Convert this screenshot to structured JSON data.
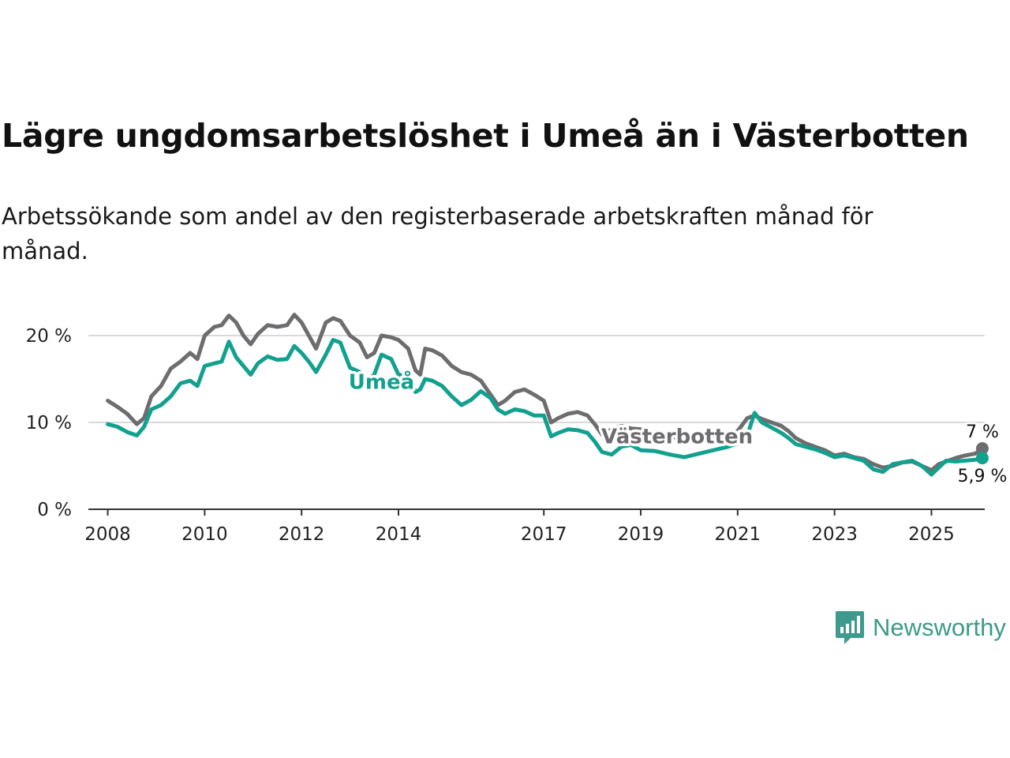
{
  "chart_data": {
    "type": "line",
    "title": "Lägre ungdomsarbetslöshet i Umeå än i Västerbotten",
    "subtitle": "Arbetssökande som andel av den registerbaserade arbetskraften månad för månad.",
    "xlabel": "",
    "ylabel": "",
    "ylim": [
      0,
      23
    ],
    "xlim": [
      2007.6,
      2026.1
    ],
    "y_ticks": [
      0,
      10,
      20
    ],
    "y_tick_labels": [
      "0 %",
      "10 %",
      "20 %"
    ],
    "x_ticks": [
      2008,
      2010,
      2012,
      2014,
      2017,
      2019,
      2021,
      2023,
      2025
    ],
    "x_tick_labels": [
      "2008",
      "2010",
      "2012",
      "2014",
      "2017",
      "2019",
      "2021",
      "2023",
      "2025"
    ],
    "grid": true,
    "series": [
      {
        "name": "Västerbotten",
        "color": "#6d6d70",
        "end_label": "7 %",
        "points": [
          [
            2008.0,
            12.5
          ],
          [
            2008.2,
            11.8
          ],
          [
            2008.4,
            11.0
          ],
          [
            2008.6,
            9.8
          ],
          [
            2008.75,
            10.5
          ],
          [
            2008.9,
            13.0
          ],
          [
            2009.1,
            14.2
          ],
          [
            2009.3,
            16.2
          ],
          [
            2009.5,
            17.0
          ],
          [
            2009.7,
            18.0
          ],
          [
            2009.85,
            17.3
          ],
          [
            2010.0,
            20.0
          ],
          [
            2010.2,
            21.0
          ],
          [
            2010.35,
            21.2
          ],
          [
            2010.5,
            22.3
          ],
          [
            2010.65,
            21.5
          ],
          [
            2010.8,
            20.0
          ],
          [
            2010.95,
            19.0
          ],
          [
            2011.1,
            20.2
          ],
          [
            2011.3,
            21.2
          ],
          [
            2011.5,
            21.0
          ],
          [
            2011.7,
            21.2
          ],
          [
            2011.85,
            22.4
          ],
          [
            2012.0,
            21.5
          ],
          [
            2012.15,
            20.0
          ],
          [
            2012.3,
            18.5
          ],
          [
            2012.5,
            21.5
          ],
          [
            2012.65,
            22.0
          ],
          [
            2012.8,
            21.7
          ],
          [
            2013.0,
            20.0
          ],
          [
            2013.2,
            19.2
          ],
          [
            2013.35,
            17.5
          ],
          [
            2013.5,
            18.0
          ],
          [
            2013.65,
            20.0
          ],
          [
            2013.85,
            19.8
          ],
          [
            2014.0,
            19.5
          ],
          [
            2014.2,
            18.5
          ],
          [
            2014.35,
            16.0
          ],
          [
            2014.45,
            15.5
          ],
          [
            2014.55,
            18.5
          ],
          [
            2014.7,
            18.3
          ],
          [
            2014.9,
            17.7
          ],
          [
            2015.1,
            16.5
          ],
          [
            2015.3,
            15.8
          ],
          [
            2015.5,
            15.5
          ],
          [
            2015.7,
            14.8
          ],
          [
            2015.9,
            13.2
          ],
          [
            2016.05,
            12.0
          ],
          [
            2016.2,
            12.5
          ],
          [
            2016.4,
            13.5
          ],
          [
            2016.6,
            13.8
          ],
          [
            2016.8,
            13.2
          ],
          [
            2017.0,
            12.5
          ],
          [
            2017.15,
            10.0
          ],
          [
            2017.3,
            10.5
          ],
          [
            2017.5,
            11.0
          ],
          [
            2017.7,
            11.2
          ],
          [
            2017.9,
            10.8
          ],
          [
            2018.05,
            9.8
          ],
          [
            2018.2,
            8.6
          ],
          [
            2018.4,
            9.2
          ],
          [
            2018.6,
            9.6
          ],
          [
            2018.8,
            9.3
          ],
          [
            2019.0,
            9.2
          ],
          [
            2019.3,
            8.8
          ],
          [
            2019.6,
            8.4
          ],
          [
            2019.9,
            8.0
          ],
          [
            2020.2,
            7.8
          ],
          [
            2020.5,
            8.0
          ],
          [
            2020.8,
            8.5
          ],
          [
            2021.0,
            9.0
          ],
          [
            2021.2,
            10.5
          ],
          [
            2021.35,
            10.8
          ],
          [
            2021.5,
            10.4
          ],
          [
            2021.7,
            10.0
          ],
          [
            2021.9,
            9.6
          ],
          [
            2022.05,
            9.0
          ],
          [
            2022.2,
            8.2
          ],
          [
            2022.4,
            7.6
          ],
          [
            2022.6,
            7.2
          ],
          [
            2022.8,
            6.8
          ],
          [
            2023.0,
            6.2
          ],
          [
            2023.2,
            6.4
          ],
          [
            2023.4,
            6.0
          ],
          [
            2023.6,
            5.8
          ],
          [
            2023.8,
            5.2
          ],
          [
            2024.0,
            4.8
          ],
          [
            2024.2,
            5.0
          ],
          [
            2024.4,
            5.4
          ],
          [
            2024.6,
            5.5
          ],
          [
            2024.8,
            5.0
          ],
          [
            2025.0,
            4.5
          ],
          [
            2025.15,
            5.2
          ],
          [
            2025.3,
            5.5
          ],
          [
            2025.5,
            5.9
          ],
          [
            2025.7,
            6.2
          ],
          [
            2025.9,
            6.4
          ],
          [
            2026.05,
            7.0
          ]
        ]
      },
      {
        "name": "Umeå",
        "color": "#12a08f",
        "end_label": "5,9 %",
        "points": [
          [
            2008.0,
            9.8
          ],
          [
            2008.2,
            9.5
          ],
          [
            2008.4,
            8.9
          ],
          [
            2008.6,
            8.5
          ],
          [
            2008.75,
            9.5
          ],
          [
            2008.9,
            11.5
          ],
          [
            2009.1,
            12.0
          ],
          [
            2009.3,
            13.0
          ],
          [
            2009.5,
            14.5
          ],
          [
            2009.7,
            14.8
          ],
          [
            2009.85,
            14.2
          ],
          [
            2010.0,
            16.5
          ],
          [
            2010.2,
            16.8
          ],
          [
            2010.35,
            17.0
          ],
          [
            2010.5,
            19.3
          ],
          [
            2010.65,
            17.5
          ],
          [
            2010.8,
            16.5
          ],
          [
            2010.95,
            15.5
          ],
          [
            2011.1,
            16.8
          ],
          [
            2011.3,
            17.6
          ],
          [
            2011.5,
            17.2
          ],
          [
            2011.7,
            17.3
          ],
          [
            2011.85,
            18.8
          ],
          [
            2012.0,
            18.0
          ],
          [
            2012.15,
            17.0
          ],
          [
            2012.3,
            15.8
          ],
          [
            2012.5,
            17.8
          ],
          [
            2012.65,
            19.5
          ],
          [
            2012.8,
            19.2
          ],
          [
            2013.0,
            16.3
          ],
          [
            2013.2,
            15.8
          ],
          [
            2013.35,
            14.8
          ],
          [
            2013.5,
            15.5
          ],
          [
            2013.65,
            17.8
          ],
          [
            2013.85,
            17.3
          ],
          [
            2014.0,
            15.5
          ],
          [
            2014.2,
            15.3
          ],
          [
            2014.35,
            13.5
          ],
          [
            2014.45,
            13.8
          ],
          [
            2014.55,
            15.0
          ],
          [
            2014.7,
            14.8
          ],
          [
            2014.9,
            14.2
          ],
          [
            2015.1,
            13.0
          ],
          [
            2015.3,
            12.0
          ],
          [
            2015.5,
            12.6
          ],
          [
            2015.7,
            13.6
          ],
          [
            2015.9,
            12.8
          ],
          [
            2016.05,
            11.5
          ],
          [
            2016.2,
            11.0
          ],
          [
            2016.4,
            11.5
          ],
          [
            2016.6,
            11.3
          ],
          [
            2016.8,
            10.8
          ],
          [
            2017.0,
            10.8
          ],
          [
            2017.15,
            8.4
          ],
          [
            2017.3,
            8.8
          ],
          [
            2017.5,
            9.2
          ],
          [
            2017.7,
            9.1
          ],
          [
            2017.9,
            8.8
          ],
          [
            2018.05,
            7.8
          ],
          [
            2018.2,
            6.6
          ],
          [
            2018.4,
            6.3
          ],
          [
            2018.6,
            7.2
          ],
          [
            2018.8,
            7.4
          ],
          [
            2019.0,
            6.8
          ],
          [
            2019.3,
            6.7
          ],
          [
            2019.6,
            6.3
          ],
          [
            2019.9,
            6.0
          ],
          [
            2020.2,
            6.4
          ],
          [
            2020.5,
            6.8
          ],
          [
            2020.8,
            7.2
          ],
          [
            2021.0,
            7.6
          ],
          [
            2021.2,
            8.5
          ],
          [
            2021.35,
            11.1
          ],
          [
            2021.5,
            10.0
          ],
          [
            2021.7,
            9.4
          ],
          [
            2021.9,
            8.8
          ],
          [
            2022.05,
            8.2
          ],
          [
            2022.2,
            7.5
          ],
          [
            2022.4,
            7.2
          ],
          [
            2022.6,
            6.9
          ],
          [
            2022.8,
            6.5
          ],
          [
            2023.0,
            6.0
          ],
          [
            2023.2,
            6.2
          ],
          [
            2023.4,
            5.9
          ],
          [
            2023.6,
            5.6
          ],
          [
            2023.8,
            4.6
          ],
          [
            2024.0,
            4.3
          ],
          [
            2024.2,
            5.2
          ],
          [
            2024.4,
            5.4
          ],
          [
            2024.6,
            5.6
          ],
          [
            2024.8,
            5.0
          ],
          [
            2025.0,
            4.0
          ],
          [
            2025.15,
            4.8
          ],
          [
            2025.3,
            5.6
          ],
          [
            2025.5,
            5.5
          ],
          [
            2025.7,
            5.6
          ],
          [
            2025.9,
            5.7
          ],
          [
            2026.05,
            5.9
          ]
        ]
      }
    ],
    "annotations": [
      {
        "text": "Umeå",
        "series": "Umeå",
        "x": 2013.65,
        "y": 14.7
      },
      {
        "text": "Västerbotten",
        "series": "Västerbotten",
        "x": 2019.75,
        "y": 8.4
      }
    ]
  },
  "logo": {
    "text": "Newsworthy",
    "color": "#3d9a8c"
  }
}
